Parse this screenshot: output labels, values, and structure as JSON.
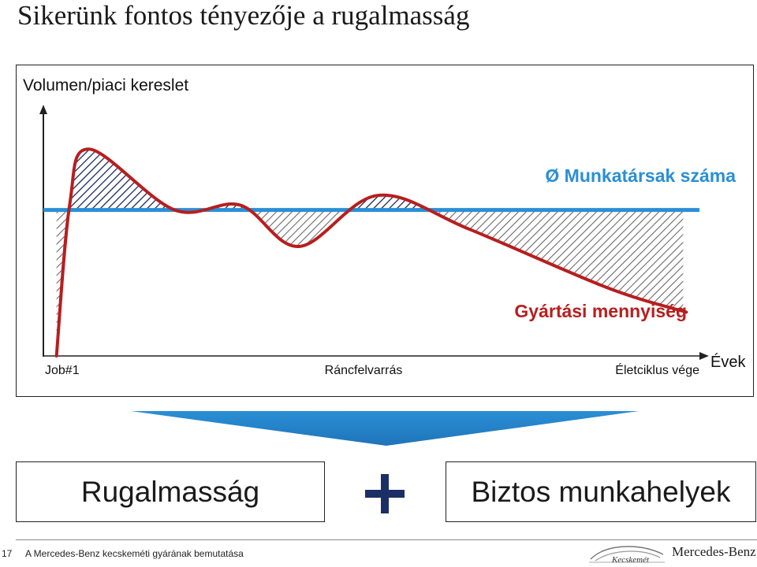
{
  "slide": {
    "title": "Sikerünk fontos tényezője a rugalmasság"
  },
  "chart_data": {
    "type": "line",
    "ylabel": "Volumen/piaci kereslet",
    "xlabel": "Évek",
    "x_ticks": [
      "Job#1",
      "Ráncfelvarrás",
      "Életciklus vége"
    ],
    "series": [
      {
        "name": "Ø Munkatársak száma",
        "color": "#2a8fd6",
        "style": "constant",
        "level": 0.6
      },
      {
        "name": "Gyártási mennyiség",
        "color": "#b81e1e",
        "style": "curve",
        "shape": [
          [
            0.02,
            0.0
          ],
          [
            0.04,
            0.62
          ],
          [
            0.07,
            0.85
          ],
          [
            0.2,
            0.6
          ],
          [
            0.3,
            0.62
          ],
          [
            0.39,
            0.45
          ],
          [
            0.51,
            0.66
          ],
          [
            0.65,
            0.52
          ],
          [
            0.86,
            0.28
          ],
          [
            0.98,
            0.18
          ]
        ]
      }
    ],
    "fill": "hatched difference between curves",
    "colors": {
      "axis": "#222222",
      "hatch": "#666666",
      "hatch_above": "#1a2a55"
    }
  },
  "bottom": {
    "left_label": "Rugalmasság",
    "plus_symbol": "+",
    "right_label": "Biztos munkahelyek",
    "arrow_color": "#2a8fd6"
  },
  "footer": {
    "page_number": "17",
    "text": "A Mercedes-Benz kecskeméti gyárának bemutatása",
    "brand": "Mercedes-Benz",
    "city": "Kecskemét"
  }
}
